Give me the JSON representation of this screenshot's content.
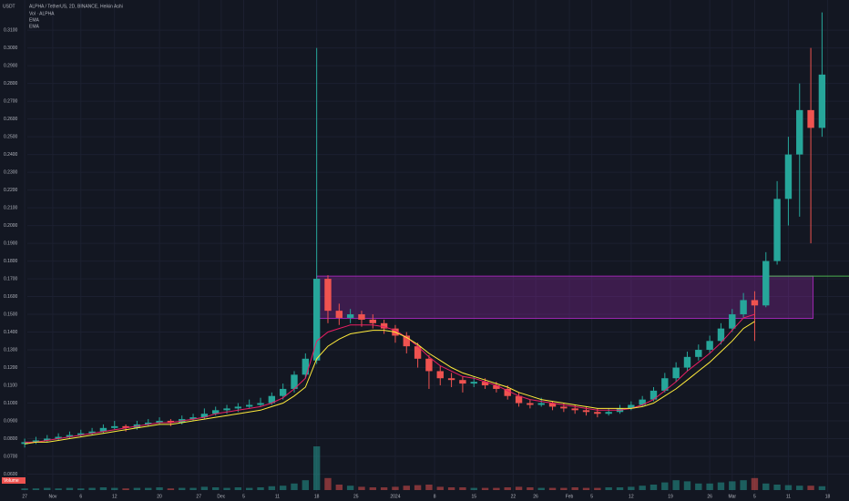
{
  "chart_data": {
    "type": "candlestick",
    "symbol": "USDT",
    "title": "ALPHA / TetherUS, 2D, BINANCE, Heikin Ashi",
    "indicators": [
      "Vol · ALPHA",
      "EMA",
      "EMA"
    ],
    "volume_label": "Volume",
    "up_color": "#26a69a",
    "down_color": "#ef5350",
    "grid": true,
    "xlim": [
      -2.2,
      73.4
    ],
    "ylim": [
      0.05,
      0.327
    ],
    "vlim": [
      0,
      100
    ],
    "yticks": [
      {
        "value": 0.06,
        "label": "0.0600"
      },
      {
        "value": 0.07,
        "label": "0.0700"
      },
      {
        "value": 0.08,
        "label": "0.0800"
      },
      {
        "value": 0.09,
        "label": "0.0900"
      },
      {
        "value": 0.1,
        "label": "0.1000"
      },
      {
        "value": 0.11,
        "label": "0.1100"
      },
      {
        "value": 0.12,
        "label": "0.1200"
      },
      {
        "value": 0.13,
        "label": "0.1300"
      },
      {
        "value": 0.14,
        "label": "0.1400"
      },
      {
        "value": 0.15,
        "label": "0.1500"
      },
      {
        "value": 0.16,
        "label": "0.1600"
      },
      {
        "value": 0.17,
        "label": "0.1700"
      },
      {
        "value": 0.18,
        "label": "0.1800"
      },
      {
        "value": 0.19,
        "label": "0.1900"
      },
      {
        "value": 0.2,
        "label": "0.2000"
      },
      {
        "value": 0.21,
        "label": "0.2100"
      },
      {
        "value": 0.22,
        "label": "0.2200"
      },
      {
        "value": 0.23,
        "label": "0.2300"
      },
      {
        "value": 0.24,
        "label": "0.2400"
      },
      {
        "value": 0.25,
        "label": "0.2500"
      },
      {
        "value": 0.26,
        "label": "0.2600"
      },
      {
        "value": 0.27,
        "label": "0.2700"
      },
      {
        "value": 0.28,
        "label": "0.2800"
      },
      {
        "value": 0.29,
        "label": "0.2900"
      },
      {
        "value": 0.3,
        "label": "0.3000"
      },
      {
        "value": 0.31,
        "label": "0.3100"
      }
    ],
    "xticks": [
      {
        "value": 0,
        "label": "27"
      },
      {
        "value": 2.5,
        "label": "Nov"
      },
      {
        "value": 5,
        "label": "6"
      },
      {
        "value": 8,
        "label": "12"
      },
      {
        "value": 12,
        "label": "20"
      },
      {
        "value": 15.5,
        "label": "27"
      },
      {
        "value": 17.5,
        "label": "Dec"
      },
      {
        "value": 19.5,
        "label": "5"
      },
      {
        "value": 22.5,
        "label": "11"
      },
      {
        "value": 26,
        "label": "18"
      },
      {
        "value": 29.5,
        "label": "25"
      },
      {
        "value": 33,
        "label": "2024"
      },
      {
        "value": 36.5,
        "label": "8"
      },
      {
        "value": 40,
        "label": "15"
      },
      {
        "value": 43.5,
        "label": "22"
      },
      {
        "value": 45.5,
        "label": "26"
      },
      {
        "value": 48.5,
        "label": "Feb"
      },
      {
        "value": 50.5,
        "label": "5"
      },
      {
        "value": 54,
        "label": "12"
      },
      {
        "value": 57.5,
        "label": "19"
      },
      {
        "value": 61,
        "label": "26"
      },
      {
        "value": 63,
        "label": "Mar"
      },
      {
        "value": 65,
        "label": "5"
      },
      {
        "value": 68,
        "label": "11"
      },
      {
        "value": 71.5,
        "label": "18"
      }
    ],
    "zone": {
      "top": 0.1715,
      "bottom": 0.1477,
      "start": 26,
      "end": 70.2,
      "color": "#9c27b0"
    },
    "level": {
      "value": 0.1715,
      "color": "#4caf50"
    },
    "candles": [
      [
        0.077,
        0.08,
        0.075,
        0.078
      ],
      [
        0.078,
        0.081,
        0.077,
        0.079
      ],
      [
        0.079,
        0.082,
        0.078,
        0.08
      ],
      [
        0.08,
        0.083,
        0.079,
        0.081
      ],
      [
        0.081,
        0.084,
        0.08,
        0.082
      ],
      [
        0.082,
        0.085,
        0.081,
        0.083
      ],
      [
        0.083,
        0.086,
        0.082,
        0.084
      ],
      [
        0.084,
        0.088,
        0.083,
        0.086
      ],
      [
        0.086,
        0.09,
        0.085,
        0.087
      ],
      [
        0.087,
        0.088,
        0.084,
        0.086
      ],
      [
        0.086,
        0.09,
        0.085,
        0.088
      ],
      [
        0.088,
        0.091,
        0.087,
        0.089
      ],
      [
        0.089,
        0.092,
        0.088,
        0.09
      ],
      [
        0.09,
        0.091,
        0.087,
        0.089
      ],
      [
        0.089,
        0.093,
        0.088,
        0.091
      ],
      [
        0.091,
        0.094,
        0.09,
        0.092
      ],
      [
        0.092,
        0.097,
        0.091,
        0.094
      ],
      [
        0.094,
        0.098,
        0.093,
        0.096
      ],
      [
        0.096,
        0.099,
        0.094,
        0.097
      ],
      [
        0.097,
        0.1,
        0.095,
        0.098
      ],
      [
        0.098,
        0.102,
        0.097,
        0.099
      ],
      [
        0.099,
        0.103,
        0.098,
        0.1
      ],
      [
        0.1,
        0.106,
        0.099,
        0.104
      ],
      [
        0.104,
        0.111,
        0.102,
        0.108
      ],
      [
        0.108,
        0.118,
        0.106,
        0.116
      ],
      [
        0.116,
        0.128,
        0.114,
        0.125
      ],
      [
        0.124,
        0.3,
        0.122,
        0.17
      ],
      [
        0.17,
        0.172,
        0.145,
        0.152
      ],
      [
        0.152,
        0.156,
        0.144,
        0.148
      ],
      [
        0.148,
        0.153,
        0.145,
        0.15
      ],
      [
        0.15,
        0.152,
        0.143,
        0.147
      ],
      [
        0.147,
        0.15,
        0.142,
        0.145
      ],
      [
        0.145,
        0.147,
        0.139,
        0.142
      ],
      [
        0.142,
        0.144,
        0.134,
        0.138
      ],
      [
        0.138,
        0.14,
        0.128,
        0.132
      ],
      [
        0.132,
        0.134,
        0.12,
        0.125
      ],
      [
        0.125,
        0.127,
        0.108,
        0.118
      ],
      [
        0.118,
        0.121,
        0.11,
        0.114
      ],
      [
        0.114,
        0.117,
        0.109,
        0.113
      ],
      [
        0.113,
        0.115,
        0.106,
        0.111
      ],
      [
        0.111,
        0.115,
        0.109,
        0.112
      ],
      [
        0.112,
        0.114,
        0.108,
        0.11
      ],
      [
        0.11,
        0.112,
        0.106,
        0.108
      ],
      [
        0.108,
        0.11,
        0.102,
        0.104
      ],
      [
        0.104,
        0.106,
        0.098,
        0.1
      ],
      [
        0.1,
        0.102,
        0.097,
        0.099
      ],
      [
        0.099,
        0.103,
        0.098,
        0.1
      ],
      [
        0.1,
        0.101,
        0.096,
        0.098
      ],
      [
        0.098,
        0.1,
        0.095,
        0.097
      ],
      [
        0.097,
        0.099,
        0.094,
        0.096
      ],
      [
        0.096,
        0.098,
        0.093,
        0.095
      ],
      [
        0.095,
        0.097,
        0.092,
        0.094
      ],
      [
        0.094,
        0.097,
        0.093,
        0.095
      ],
      [
        0.095,
        0.099,
        0.094,
        0.097
      ],
      [
        0.097,
        0.101,
        0.096,
        0.099
      ],
      [
        0.099,
        0.104,
        0.098,
        0.102
      ],
      [
        0.102,
        0.109,
        0.101,
        0.107
      ],
      [
        0.107,
        0.117,
        0.106,
        0.114
      ],
      [
        0.114,
        0.123,
        0.112,
        0.12
      ],
      [
        0.12,
        0.129,
        0.118,
        0.126
      ],
      [
        0.126,
        0.133,
        0.124,
        0.13
      ],
      [
        0.13,
        0.138,
        0.128,
        0.135
      ],
      [
        0.135,
        0.145,
        0.133,
        0.142
      ],
      [
        0.142,
        0.153,
        0.14,
        0.15
      ],
      [
        0.15,
        0.162,
        0.148,
        0.158
      ],
      [
        0.158,
        0.163,
        0.135,
        0.155
      ],
      [
        0.155,
        0.185,
        0.154,
        0.18
      ],
      [
        0.18,
        0.225,
        0.178,
        0.215
      ],
      [
        0.215,
        0.25,
        0.2,
        0.24
      ],
      [
        0.24,
        0.28,
        0.205,
        0.265
      ],
      [
        0.265,
        0.3,
        0.19,
        0.255
      ],
      [
        0.255,
        0.32,
        0.25,
        0.285
      ]
    ],
    "volume": [
      3,
      3,
      4,
      3,
      4,
      3,
      4,
      5,
      4,
      3,
      4,
      4,
      5,
      3,
      4,
      4,
      6,
      5,
      4,
      5,
      4,
      5,
      7,
      8,
      12,
      18,
      80,
      22,
      10,
      8,
      6,
      5,
      5,
      6,
      8,
      9,
      10,
      6,
      5,
      5,
      4,
      4,
      4,
      5,
      6,
      5,
      4,
      4,
      4,
      5,
      4,
      4,
      5,
      5,
      6,
      8,
      10,
      14,
      18,
      16,
      12,
      12,
      14,
      16,
      18,
      22,
      12,
      10,
      9,
      8,
      8,
      7
    ],
    "ema": [
      {
        "name": "EMA",
        "color": "#e91e63",
        "values": [
          0.078,
          0.078,
          0.079,
          0.08,
          0.081,
          0.082,
          0.083,
          0.084,
          0.085,
          0.086,
          0.087,
          0.088,
          0.089,
          0.089,
          0.09,
          0.091,
          0.092,
          0.094,
          0.095,
          0.096,
          0.097,
          0.098,
          0.1,
          0.103,
          0.108,
          0.114,
          0.135,
          0.14,
          0.142,
          0.144,
          0.144,
          0.144,
          0.143,
          0.141,
          0.137,
          0.132,
          0.126,
          0.121,
          0.118,
          0.115,
          0.114,
          0.112,
          0.11,
          0.107,
          0.104,
          0.102,
          0.101,
          0.1,
          0.099,
          0.098,
          0.097,
          0.096,
          0.096,
          0.096,
          0.097,
          0.099,
          0.102,
          0.107,
          0.112,
          0.118,
          0.123,
          0.128,
          0.134,
          0.141,
          0.148,
          0.15,
          null,
          null,
          null,
          null,
          null,
          null
        ]
      },
      {
        "name": "EMA",
        "color": "#ffeb3b",
        "values": [
          0.077,
          0.078,
          0.078,
          0.079,
          0.08,
          0.081,
          0.082,
          0.083,
          0.084,
          0.085,
          0.086,
          0.087,
          0.088,
          0.088,
          0.089,
          0.09,
          0.091,
          0.092,
          0.093,
          0.094,
          0.095,
          0.096,
          0.098,
          0.1,
          0.104,
          0.109,
          0.125,
          0.132,
          0.136,
          0.139,
          0.14,
          0.141,
          0.141,
          0.14,
          0.137,
          0.133,
          0.128,
          0.124,
          0.12,
          0.117,
          0.115,
          0.113,
          0.111,
          0.109,
          0.106,
          0.104,
          0.102,
          0.101,
          0.1,
          0.099,
          0.098,
          0.097,
          0.097,
          0.097,
          0.097,
          0.098,
          0.1,
          0.104,
          0.108,
          0.113,
          0.118,
          0.123,
          0.129,
          0.135,
          0.142,
          0.146,
          null,
          null,
          null,
          null,
          null,
          null
        ]
      }
    ]
  }
}
